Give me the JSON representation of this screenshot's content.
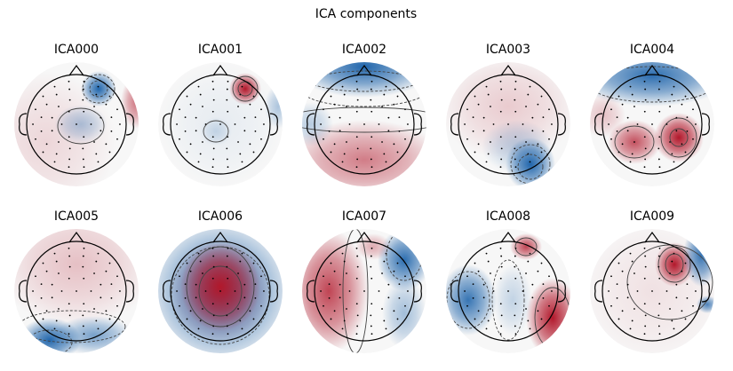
{
  "figure": {
    "title": "ICA components"
  },
  "components": [
    {
      "label": "ICA000",
      "pattern": "frontal-right-negative-focus, weak central negative, right-edge positive, diffuse positive elsewhere"
    },
    {
      "label": "ICA001",
      "pattern": "right-frontal positive focus, weak central negative, right-edge negative"
    },
    {
      "label": "ICA002",
      "pattern": "frontal negative, posterior positive gradient"
    },
    {
      "label": "ICA003",
      "pattern": "posterior right negative focus, anterior positive"
    },
    {
      "label": "ICA004",
      "pattern": "frontal negative band, posterior bilateral positive"
    },
    {
      "label": "ICA005",
      "pattern": "posterior negative, anterior weak positive"
    },
    {
      "label": "ICA006",
      "pattern": "central positive, peripheral negative ring"
    },
    {
      "label": "ICA007",
      "pattern": "left positive, right-frontal negative"
    },
    {
      "label": "ICA008",
      "pattern": "right posterior positive, left negative, right-frontal positive"
    },
    {
      "label": "ICA009",
      "pattern": "right-frontal positive focus with right-edge negative"
    }
  ],
  "colors": {
    "positive": "#b2182b",
    "negative": "#2166ac",
    "neutral": "#f7f7f7",
    "outline": "#000000",
    "contour": "#444444"
  }
}
